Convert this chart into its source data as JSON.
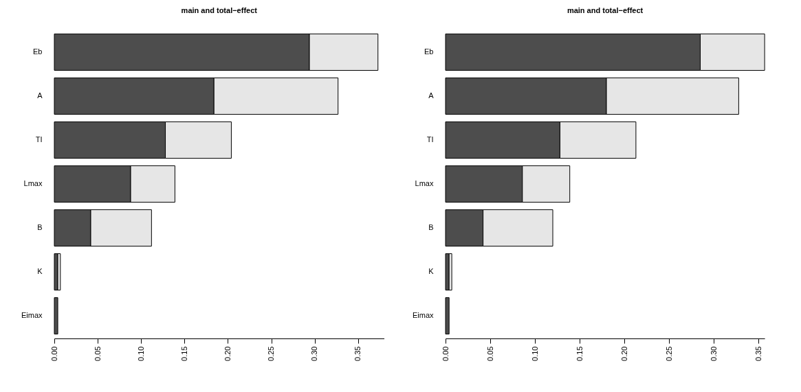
{
  "chart_data": [
    {
      "type": "bar",
      "orientation": "horizontal",
      "stacked": true,
      "title": "main and total−effect",
      "categories": [
        "Eb",
        "A",
        "TI",
        "Lmax",
        "B",
        "K",
        "Eimax"
      ],
      "series": [
        {
          "color": "#4d4d4d",
          "values": [
            0.294,
            0.184,
            0.128,
            0.088,
            0.042,
            0.004,
            0.004
          ]
        },
        {
          "color": "#e6e6e6",
          "values": [
            0.079,
            0.143,
            0.076,
            0.051,
            0.07,
            0.003,
            null
          ]
        }
      ],
      "xlim": [
        0,
        0.38
      ],
      "xticks": [
        {
          "value": 0,
          "label": "0.00"
        },
        0.05,
        {
          "value": 0.1,
          "label": "0.10"
        },
        0.15,
        {
          "value": 0.2,
          "label": "0.20"
        },
        0.25,
        {
          "value": 0.3,
          "label": "0.30"
        },
        0.35
      ],
      "grid": false
    },
    {
      "type": "bar",
      "orientation": "horizontal",
      "stacked": true,
      "title": "main and total−effect",
      "categories": [
        "Eb",
        "A",
        "TI",
        "Lmax",
        "B",
        "K",
        "Eimax"
      ],
      "series": [
        {
          "color": "#4d4d4d",
          "values": [
            0.285,
            0.18,
            0.128,
            0.086,
            0.042,
            0.004,
            0.004
          ]
        },
        {
          "color": "#e6e6e6",
          "values": [
            0.072,
            0.148,
            0.085,
            0.053,
            0.078,
            0.003,
            null
          ]
        }
      ],
      "xlim": [
        0,
        0.357
      ],
      "xticks": [
        {
          "value": 0,
          "label": "0.00"
        },
        0.05,
        {
          "value": 0.1,
          "label": "0.10"
        },
        0.15,
        {
          "value": 0.2,
          "label": "0.20"
        },
        0.25,
        {
          "value": 0.3,
          "label": "0.30"
        },
        0.35
      ],
      "grid": false
    }
  ]
}
